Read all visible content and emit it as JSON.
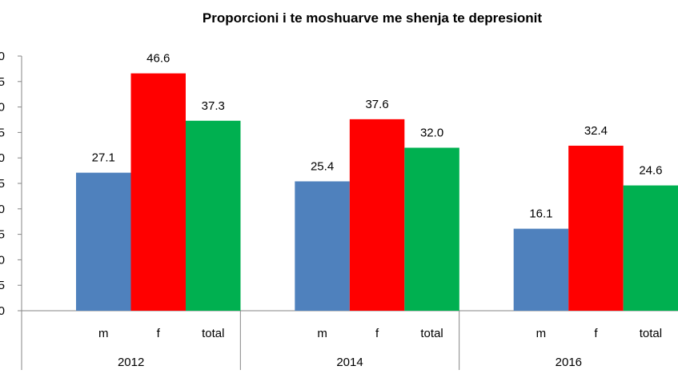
{
  "chart_data": {
    "type": "bar",
    "title": "Proporcioni i te moshuarve me shenja te depresionit",
    "xlabel": "",
    "ylabel": "",
    "ylim": [
      0,
      50
    ],
    "y_ticks": [
      "0",
      "5",
      "0",
      "5",
      "0",
      "5",
      "0",
      "5",
      "0",
      "5",
      "0"
    ],
    "grid": false,
    "legend": "none",
    "groups": [
      {
        "year": "2012",
        "bars": [
          {
            "category": "m",
            "value": 27.1,
            "label": "27.1"
          },
          {
            "category": "f",
            "value": 46.6,
            "label": "46.6"
          },
          {
            "category": "total",
            "value": 37.3,
            "label": "37.3"
          }
        ]
      },
      {
        "year": "2014",
        "bars": [
          {
            "category": "m",
            "value": 25.4,
            "label": "25.4"
          },
          {
            "category": "f",
            "value": 37.6,
            "label": "37.6"
          },
          {
            "category": "total",
            "value": 32.0,
            "label": "32.0"
          }
        ]
      },
      {
        "year": "2016",
        "bars": [
          {
            "category": "m",
            "value": 16.1,
            "label": "16.1"
          },
          {
            "category": "f",
            "value": 32.4,
            "label": "32.4"
          },
          {
            "category": "total",
            "value": 24.6,
            "label": "24.6"
          }
        ]
      }
    ],
    "colors": {
      "m": "#4f81bd",
      "f": "#ff0000",
      "total": "#00b050"
    }
  }
}
